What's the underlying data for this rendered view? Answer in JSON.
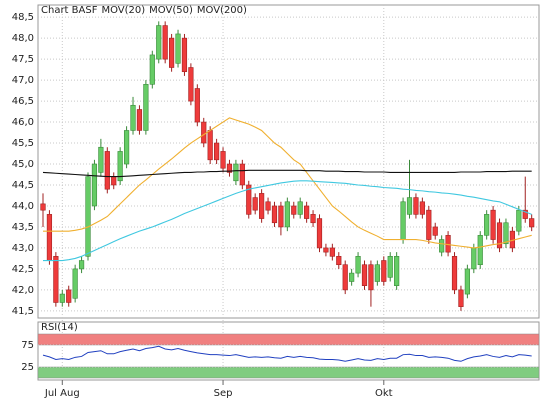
{
  "chart_data": [
    {
      "type": "candlestick",
      "title": "Chart BASF",
      "title_color": "#e03030",
      "categories": [
        null,
        null,
        null,
        "Jul Aug",
        null,
        null,
        null,
        null,
        null,
        null,
        null,
        null,
        null,
        null,
        null,
        null,
        null,
        null,
        null,
        null,
        null,
        null,
        null,
        null,
        null,
        null,
        null,
        null,
        "Sep",
        null,
        null,
        null,
        null,
        null,
        null,
        null,
        null,
        null,
        null,
        null,
        null,
        null,
        null,
        null,
        null,
        null,
        null,
        null,
        null,
        null,
        null,
        null,
        null,
        "Okt",
        null,
        null,
        null,
        null,
        null,
        null,
        null,
        null,
        null,
        null,
        null,
        null,
        null,
        null,
        null,
        null,
        null,
        null,
        null,
        null,
        null,
        null,
        null
      ],
      "open": [
        44.05,
        43.8,
        42.8,
        41.7,
        42.0,
        41.8,
        42.5,
        42.8,
        44.0,
        44.8,
        45.3,
        44.7,
        44.6,
        45.0,
        45.8,
        46.3,
        45.8,
        46.9,
        47.5,
        48.3,
        48.0,
        47.4,
        48.0,
        47.3,
        46.8,
        46.0,
        45.8,
        45.5,
        45.3,
        45.0,
        44.6,
        45.0,
        44.5,
        44.2,
        44.3,
        44.1,
        44.0,
        44.0,
        43.5,
        44.0,
        43.8,
        44.0,
        43.8,
        43.7,
        43.0,
        43.0,
        42.8,
        42.6,
        42.2,
        42.4,
        42.6,
        42.6,
        42.2,
        42.7,
        42.3,
        42.1,
        43.2,
        43.8,
        44.2,
        44.1,
        43.9,
        43.5,
        42.9,
        43.3,
        42.8,
        42.0,
        41.9,
        42.5,
        42.6,
        43.3,
        43.9,
        43.6,
        43.1,
        43.4,
        43.4,
        43.9,
        43.7
      ],
      "high": [
        44.3,
        43.9,
        42.9,
        42.0,
        42.1,
        42.6,
        42.8,
        44.8,
        45.1,
        45.6,
        45.4,
        44.8,
        45.4,
        45.9,
        46.6,
        46.4,
        47.0,
        47.7,
        48.4,
        48.4,
        48.1,
        48.2,
        48.1,
        47.4,
        46.9,
        46.1,
        45.9,
        45.6,
        45.4,
        45.1,
        45.1,
        45.1,
        44.6,
        44.3,
        44.4,
        44.2,
        44.1,
        44.1,
        44.2,
        44.1,
        44.2,
        44.1,
        43.9,
        43.8,
        43.1,
        43.1,
        42.9,
        42.7,
        42.5,
        42.9,
        42.7,
        42.7,
        42.7,
        42.8,
        42.9,
        42.9,
        44.2,
        45.1,
        44.3,
        44.2,
        44.0,
        43.6,
        43.3,
        43.4,
        42.9,
        42.1,
        42.6,
        43.1,
        43.4,
        43.9,
        44.0,
        43.7,
        43.7,
        43.5,
        44.0,
        44.7,
        43.8
      ],
      "low": [
        43.5,
        42.6,
        41.6,
        41.6,
        41.6,
        41.7,
        42.4,
        42.7,
        43.9,
        44.7,
        44.3,
        44.4,
        44.5,
        44.9,
        45.7,
        45.7,
        45.7,
        46.8,
        47.4,
        47.4,
        47.2,
        47.3,
        47.1,
        46.4,
        45.9,
        45.4,
        45.0,
        45.0,
        44.8,
        44.7,
        44.5,
        44.4,
        43.7,
        43.8,
        43.6,
        43.8,
        43.5,
        43.3,
        43.4,
        43.7,
        43.7,
        43.6,
        43.5,
        42.9,
        42.8,
        42.7,
        42.5,
        41.9,
        42.1,
        42.3,
        42.0,
        41.6,
        42.1,
        42.1,
        42.2,
        42.0,
        43.1,
        43.7,
        43.7,
        43.7,
        43.1,
        43.2,
        42.8,
        42.8,
        41.9,
        41.5,
        41.8,
        42.4,
        42.5,
        43.2,
        43.1,
        42.9,
        43.0,
        42.9,
        43.3,
        43.6,
        43.4
      ],
      "close": [
        43.9,
        42.7,
        41.7,
        41.9,
        41.7,
        42.5,
        42.7,
        44.7,
        45.0,
        45.4,
        44.4,
        44.5,
        45.3,
        45.8,
        46.4,
        45.8,
        46.9,
        47.6,
        48.3,
        47.5,
        47.3,
        48.1,
        47.2,
        46.5,
        46.0,
        45.5,
        45.1,
        45.1,
        44.9,
        44.8,
        45.0,
        44.5,
        43.8,
        43.9,
        43.7,
        43.9,
        43.6,
        43.5,
        44.1,
        43.8,
        44.1,
        43.7,
        43.6,
        43.0,
        42.9,
        42.8,
        42.6,
        42.0,
        42.4,
        42.8,
        42.1,
        42.0,
        42.6,
        42.2,
        42.8,
        42.8,
        44.1,
        44.2,
        43.8,
        43.8,
        43.2,
        43.3,
        43.2,
        42.9,
        42.0,
        41.6,
        42.5,
        43.0,
        43.3,
        43.8,
        43.2,
        43.0,
        43.6,
        43.0,
        43.9,
        43.7,
        43.5
      ],
      "up_color": "#66cc66",
      "down_color": "#ee3b3b",
      "series": [
        {
          "name": "MOV(20)",
          "color": "#f0b030",
          "values": [
            43.4,
            43.4,
            43.4,
            43.4,
            43.4,
            43.42,
            43.45,
            43.5,
            43.58,
            43.66,
            43.75,
            43.9,
            44.05,
            44.2,
            44.35,
            44.5,
            44.62,
            44.75,
            44.88,
            45.0,
            45.12,
            45.25,
            45.38,
            45.5,
            45.6,
            45.7,
            45.8,
            45.9,
            46.0,
            46.1,
            46.05,
            46.0,
            45.95,
            45.88,
            45.8,
            45.65,
            45.5,
            45.4,
            45.25,
            45.1,
            45.0,
            44.8,
            44.6,
            44.4,
            44.2,
            44.0,
            43.88,
            43.75,
            43.62,
            43.5,
            43.42,
            43.35,
            43.28,
            43.2,
            43.2,
            43.2,
            43.2,
            43.2,
            43.2,
            43.18,
            43.15,
            43.12,
            43.1,
            43.08,
            43.06,
            43.04,
            43.02,
            43.0,
            43.02,
            43.05,
            43.08,
            43.1,
            43.14,
            43.18,
            43.22,
            43.26,
            43.3
          ]
        },
        {
          "name": "MOV(50)",
          "color": "#40c8e0",
          "values": [
            42.7,
            42.7,
            42.7,
            42.7,
            42.72,
            42.75,
            42.8,
            42.87,
            42.94,
            43.01,
            43.08,
            43.15,
            43.22,
            43.28,
            43.34,
            43.4,
            43.45,
            43.5,
            43.56,
            43.62,
            43.68,
            43.75,
            43.82,
            43.88,
            43.94,
            44.0,
            44.06,
            44.12,
            44.18,
            44.24,
            44.3,
            44.35,
            44.4,
            44.43,
            44.46,
            44.49,
            44.52,
            44.55,
            44.57,
            44.59,
            44.6,
            44.6,
            44.59,
            44.58,
            44.57,
            44.56,
            44.55,
            44.54,
            44.52,
            44.5,
            44.49,
            44.47,
            44.46,
            44.44,
            44.43,
            44.42,
            44.4,
            44.39,
            44.37,
            44.36,
            44.34,
            44.33,
            44.31,
            44.3,
            44.28,
            44.26,
            44.23,
            44.21,
            44.18,
            44.15,
            44.12,
            44.1,
            44.04,
            43.98,
            43.92,
            43.86,
            43.8
          ]
        },
        {
          "name": "MOV(200)",
          "color": "#111111",
          "values": [
            44.8,
            44.79,
            44.78,
            44.77,
            44.76,
            44.75,
            44.74,
            44.73,
            44.72,
            44.71,
            44.7,
            44.7,
            44.7,
            44.71,
            44.72,
            44.73,
            44.74,
            44.75,
            44.76,
            44.77,
            44.78,
            44.79,
            44.8,
            44.8,
            44.81,
            44.81,
            44.82,
            44.82,
            44.83,
            44.83,
            44.84,
            44.84,
            44.85,
            44.85,
            44.85,
            44.85,
            44.85,
            44.85,
            44.85,
            44.85,
            44.85,
            44.84,
            44.84,
            44.84,
            44.83,
            44.83,
            44.83,
            44.82,
            44.82,
            44.82,
            44.81,
            44.81,
            44.81,
            44.81,
            44.8,
            44.8,
            44.8,
            44.8,
            44.8,
            44.8,
            44.8,
            44.8,
            44.8,
            44.8,
            44.8,
            44.81,
            44.81,
            44.81,
            44.81,
            44.82,
            44.82,
            44.82,
            44.82,
            44.83,
            44.83,
            44.83,
            44.83
          ]
        }
      ],
      "ylim": [
        41.33,
        48.79
      ],
      "yticks": [
        {
          "value": 41.5,
          "label": "41,5"
        },
        {
          "value": 42,
          "label": "42,0"
        },
        {
          "value": 42.5,
          "label": "42,5"
        },
        {
          "value": 43,
          "label": "43,0"
        },
        {
          "value": 43.5,
          "label": "43,5"
        },
        {
          "value": 44,
          "label": "44,0"
        },
        {
          "value": 44.5,
          "label": "44,5"
        },
        {
          "value": 45,
          "label": "45,0"
        },
        {
          "value": 45.5,
          "label": "45,5"
        },
        {
          "value": 46,
          "label": "46,0"
        },
        {
          "value": 46.5,
          "label": "46,5"
        },
        {
          "value": 47,
          "label": "47,0"
        },
        {
          "value": 47.5,
          "label": "47,5"
        },
        {
          "value": 48,
          "label": "48,0"
        },
        {
          "value": 48.5,
          "label": "48,5"
        }
      ],
      "grid": true
    },
    {
      "type": "line",
      "title": "RSI(14)",
      "series": [
        {
          "color": "#2040c0",
          "values": [
            52,
            48,
            42,
            44,
            42,
            47,
            49,
            58,
            60,
            62,
            55,
            55,
            60,
            63,
            66,
            62,
            67,
            69,
            72,
            66,
            64,
            67,
            63,
            60,
            57,
            55,
            53,
            53,
            52,
            51,
            53,
            50,
            47,
            48,
            47,
            48,
            46,
            45,
            49,
            47,
            49,
            47,
            46,
            43,
            42,
            42,
            41,
            38,
            41,
            44,
            41,
            40,
            44,
            42,
            45,
            45,
            53,
            54,
            51,
            51,
            47,
            48,
            47,
            45,
            40,
            38,
            44,
            48,
            50,
            53,
            49,
            47,
            51,
            48,
            53,
            52,
            50
          ]
        }
      ],
      "bands": [
        {
          "from": 75,
          "to": 100,
          "color": "#f08080"
        },
        {
          "from": 0,
          "to": 25,
          "color": "#80cc80"
        }
      ],
      "ylim": [
        0,
        100
      ],
      "yticks": [
        25,
        75
      ],
      "grid": true
    }
  ]
}
